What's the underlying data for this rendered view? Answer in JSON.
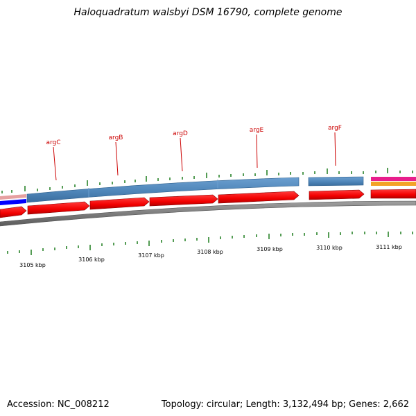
{
  "title": "Haloquadratum walsbyi DSM 16790, complete genome",
  "footer": {
    "accession": "Accession: NC_008212",
    "summary": "Topology: circular; Length: 3,132,494 bp; Genes: 2,662"
  },
  "genes": [
    {
      "name": "argC"
    },
    {
      "name": "argB"
    },
    {
      "name": "argD"
    },
    {
      "name": "argE"
    },
    {
      "name": "argF"
    }
  ],
  "kbp_ticks": [
    {
      "label": "3105 kbp"
    },
    {
      "label": "3106 kbp"
    },
    {
      "label": "3107 kbp"
    },
    {
      "label": "3108 kbp"
    },
    {
      "label": "3109 kbp"
    },
    {
      "label": "3110 kbp"
    },
    {
      "label": "3111 kbp"
    }
  ],
  "colors": {
    "forward_track": "#4f86b9",
    "reverse_cds": "#ff0000",
    "backbone": "#7a7a7a",
    "tick": "#1a7a1a",
    "gene_label": "#cc0000",
    "magenta_feature": "#e81e8c",
    "orange_feature": "#f3a327",
    "blue_feature": "#0000ff",
    "pink_feature": "#e6a0a0"
  }
}
